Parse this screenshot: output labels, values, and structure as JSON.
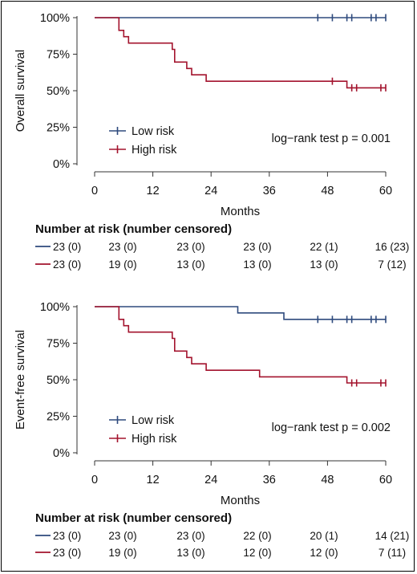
{
  "colors": {
    "low": "#2e4a7d",
    "high": "#a3132d",
    "axis": "#333333"
  },
  "chart_data": [
    {
      "type": "line",
      "id": "os",
      "ylabel": "Overall survival",
      "xlabel": "Months",
      "xlim": [
        0,
        60
      ],
      "ylim": [
        0,
        100
      ],
      "xticks": [
        "0",
        "12",
        "24",
        "36",
        "48",
        "60"
      ],
      "yticks": [
        "0%",
        "25%",
        "50%",
        "75%",
        "100%"
      ],
      "legend": [
        "Low risk",
        "High risk"
      ],
      "legend_position": "bottom-left",
      "annotation": "log−rank test p = 0.001",
      "series": [
        {
          "name": "Low risk",
          "steps": [
            [
              0,
              100
            ],
            [
              60,
              100
            ]
          ],
          "censored": [
            [
              46,
              100
            ],
            [
              49,
              100
            ],
            [
              52,
              100
            ],
            [
              53,
              100
            ],
            [
              57,
              100
            ],
            [
              58,
              100
            ],
            [
              60,
              100
            ]
          ]
        },
        {
          "name": "High risk",
          "steps": [
            [
              0,
              100
            ],
            [
              5,
              100
            ],
            [
              5,
              91.3
            ],
            [
              6,
              91.3
            ],
            [
              6,
              87
            ],
            [
              7,
              87
            ],
            [
              7,
              82.6
            ],
            [
              16,
              82.6
            ],
            [
              16,
              78.3
            ],
            [
              16.5,
              78.3
            ],
            [
              16.5,
              69.6
            ],
            [
              19,
              69.6
            ],
            [
              19,
              65.2
            ],
            [
              20,
              65.2
            ],
            [
              20,
              60.9
            ],
            [
              23,
              60.9
            ],
            [
              23,
              56.5
            ],
            [
              52,
              56.5
            ],
            [
              52,
              52
            ],
            [
              60,
              52
            ]
          ],
          "censored": [
            [
              49,
              56.5
            ],
            [
              53,
              52
            ],
            [
              54,
              52
            ],
            [
              59,
              52
            ],
            [
              60,
              52
            ]
          ]
        }
      ],
      "risk_table": {
        "title": "Number at risk (number censored)",
        "rows": [
          {
            "name": "Low risk",
            "values": [
              "23 (0)",
              "23 (0)",
              "23 (0)",
              "23 (0)",
              "22 (1)",
              "16 (23)"
            ]
          },
          {
            "name": "High risk",
            "values": [
              "23 (0)",
              "19 (0)",
              "13 (0)",
              "13 (0)",
              "13 (0)",
              "7 (12)"
            ]
          }
        ]
      }
    },
    {
      "type": "line",
      "id": "efs",
      "ylabel": "Event-free survival",
      "xlabel": "Months",
      "xlim": [
        0,
        60
      ],
      "ylim": [
        0,
        100
      ],
      "xticks": [
        "0",
        "12",
        "24",
        "36",
        "48",
        "60"
      ],
      "yticks": [
        "0%",
        "25%",
        "50%",
        "75%",
        "100%"
      ],
      "legend": [
        "Low risk",
        "High risk"
      ],
      "legend_position": "bottom-left",
      "annotation": "log−rank test p = 0.002",
      "series": [
        {
          "name": "Low risk",
          "steps": [
            [
              0,
              100
            ],
            [
              29.5,
              100
            ],
            [
              29.5,
              95.7
            ],
            [
              39,
              95.7
            ],
            [
              39,
              91.3
            ],
            [
              60,
              91.3
            ]
          ],
          "censored": [
            [
              46,
              91.3
            ],
            [
              49,
              91.3
            ],
            [
              52,
              91.3
            ],
            [
              53,
              91.3
            ],
            [
              57,
              91.3
            ],
            [
              58,
              91.3
            ],
            [
              60,
              91.3
            ]
          ]
        },
        {
          "name": "High risk",
          "steps": [
            [
              0,
              100
            ],
            [
              5,
              100
            ],
            [
              5,
              91.3
            ],
            [
              6,
              91.3
            ],
            [
              6,
              87
            ],
            [
              7,
              87
            ],
            [
              7,
              82.6
            ],
            [
              16,
              82.6
            ],
            [
              16,
              78.3
            ],
            [
              16.5,
              78.3
            ],
            [
              16.5,
              69.6
            ],
            [
              19,
              69.6
            ],
            [
              19,
              65.2
            ],
            [
              20,
              65.2
            ],
            [
              20,
              60.9
            ],
            [
              23,
              60.9
            ],
            [
              23,
              56.5
            ],
            [
              34,
              56.5
            ],
            [
              34,
              52
            ],
            [
              52,
              52
            ],
            [
              52,
              47.8
            ],
            [
              60,
              47.8
            ]
          ],
          "censored": [
            [
              53,
              47.8
            ],
            [
              54,
              47.8
            ],
            [
              59,
              47.8
            ],
            [
              60,
              47.8
            ]
          ]
        }
      ],
      "risk_table": {
        "title": "Number at risk (number censored)",
        "rows": [
          {
            "name": "Low risk",
            "values": [
              "23 (0)",
              "23 (0)",
              "23 (0)",
              "22 (0)",
              "20 (1)",
              "14 (21)"
            ]
          },
          {
            "name": "High risk",
            "values": [
              "23 (0)",
              "19 (0)",
              "13 (0)",
              "12 (0)",
              "12 (0)",
              "7 (11)"
            ]
          }
        ]
      }
    }
  ]
}
